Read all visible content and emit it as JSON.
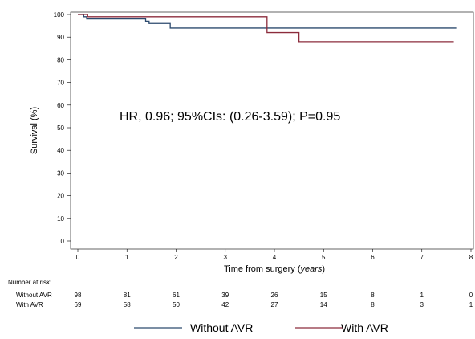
{
  "chart_data": {
    "type": "line",
    "subtype": "kaplan-meier step",
    "ylabel": "Survival (%)",
    "xlabel_prefix": "Time from surgery (",
    "xlabel_italic": "years",
    "xlabel_suffix": ")",
    "xlim": [
      0,
      8
    ],
    "ylim": [
      0,
      100
    ],
    "xticks": [
      0,
      1,
      2,
      3,
      4,
      5,
      6,
      7,
      8
    ],
    "yticks": [
      0,
      10,
      20,
      30,
      40,
      50,
      60,
      70,
      80,
      90,
      100
    ],
    "grid": false,
    "annotation": "HR, 0.96; 95%CIs: (0.26-3.59); P=0.95",
    "legend_position": "bottom",
    "series": [
      {
        "name": "Without AVR",
        "color": "#2c4a6e",
        "points": [
          [
            0,
            100
          ],
          [
            0.12,
            100
          ],
          [
            0.12,
            99
          ],
          [
            0.18,
            99
          ],
          [
            0.18,
            98
          ],
          [
            1.38,
            98
          ],
          [
            1.38,
            97
          ],
          [
            1.45,
            97
          ],
          [
            1.45,
            96
          ],
          [
            1.88,
            96
          ],
          [
            1.88,
            94
          ],
          [
            7.7,
            94
          ]
        ]
      },
      {
        "name": "With AVR",
        "color": "#8c2c3c",
        "points": [
          [
            0,
            100
          ],
          [
            0.2,
            100
          ],
          [
            0.2,
            99
          ],
          [
            3.85,
            99
          ],
          [
            3.85,
            92
          ],
          [
            4.5,
            92
          ],
          [
            4.5,
            88
          ],
          [
            7.65,
            88
          ]
        ]
      }
    ],
    "risk_table": {
      "title": "Number at risk:",
      "rows": [
        {
          "label": "Without AVR",
          "values": [
            "98",
            "81",
            "61",
            "39",
            "26",
            "15",
            "8",
            "1",
            "0"
          ]
        },
        {
          "label": "With AVR",
          "values": [
            "69",
            "58",
            "50",
            "42",
            "27",
            "14",
            "8",
            "3",
            "1"
          ]
        }
      ]
    }
  }
}
